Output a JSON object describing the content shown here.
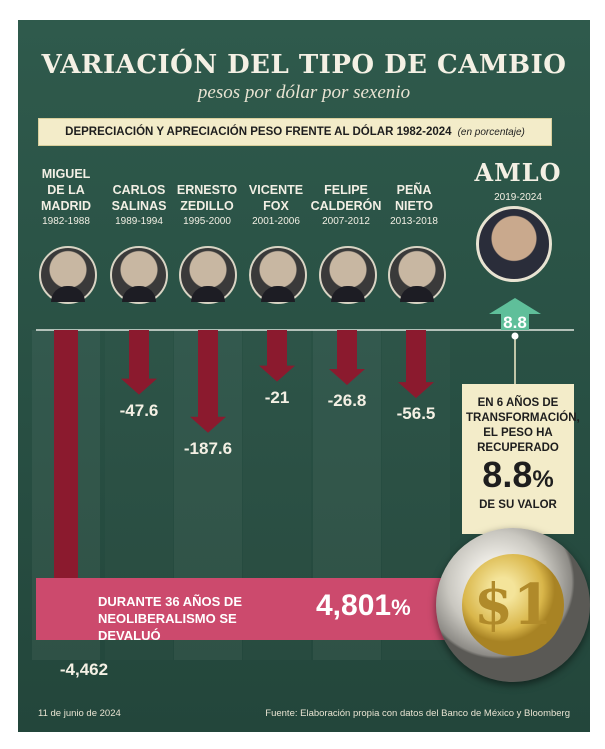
{
  "title": "VARIACIÓN DEL TIPO DE CAMBIO",
  "subtitle": "pesos por dólar por sexenio",
  "banner": {
    "main": "DEPRECIACIÓN Y APRECIACIÓN PESO FRENTE AL DÓLAR 1982-2024",
    "unit": "(en porcentaje)"
  },
  "colors": {
    "background": "#2b5447",
    "depreciation_arrow": "#8b1a2e",
    "appreciation_arrow": "#5fbf9a",
    "pink_band": "#cc4a6d",
    "cream": "#f3ecc9"
  },
  "chart_data": {
    "type": "bar",
    "categories": [
      "MIGUEL DE LA MADRID 1982-1988",
      "CARLOS SALINAS 1989-1994",
      "ERNESTO ZEDILLO 1995-2000",
      "VICENTE FOX 2001-2006",
      "FELIPE CALDERÓN 2007-2012",
      "PEÑA NIETO 2013-2018",
      "AMLO 2019-2024"
    ],
    "values": [
      -4462,
      -47.6,
      -187.6,
      -21,
      -26.8,
      -56.5,
      8.8
    ],
    "value_labels": [
      "-4,462",
      "-47.6",
      "-187.6",
      "-21",
      "-26.8",
      "-56.5",
      "8.8"
    ],
    "title": "VARIACIÓN DEL TIPO DE CAMBIO",
    "xlabel": "",
    "ylabel": ""
  },
  "presidents": [
    {
      "name_lines": [
        "MIGUEL",
        "DE LA",
        "MADRID"
      ],
      "years": "1982-1988"
    },
    {
      "name_lines": [
        "CARLOS",
        "SALINAS"
      ],
      "years": "1989-1994"
    },
    {
      "name_lines": [
        "ERNESTO",
        "ZEDILLO"
      ],
      "years": "1995-2000"
    },
    {
      "name_lines": [
        "VICENTE",
        "FOX"
      ],
      "years": "2001-2006"
    },
    {
      "name_lines": [
        "FELIPE",
        "CALDERÓN"
      ],
      "years": "2007-2012"
    },
    {
      "name_lines": [
        "PEÑA",
        "NIETO"
      ],
      "years": "2013-2018"
    }
  ],
  "amlo": {
    "name": "AMLO",
    "years": "2019-2024",
    "box_text_1": "EN 6 AÑOS DE TRANSFORMACIÓN,",
    "box_text_2": "EL PESO HA RECUPERADO",
    "box_value": "8.8",
    "box_pct": "%",
    "box_text_3": "DE SU VALOR"
  },
  "neoliberal": {
    "text_line1": "DURANTE 36 AÑOS DE",
    "text_line2": "NEOLIBERALISMO SE DEVALUÓ",
    "value": "4,801",
    "pct": "%"
  },
  "coin": {
    "symbol": "$1"
  },
  "footer": {
    "date": "11 de junio de 2024",
    "source": "Fuente: Elaboración propia con datos del Banco de México y Bloomberg"
  }
}
